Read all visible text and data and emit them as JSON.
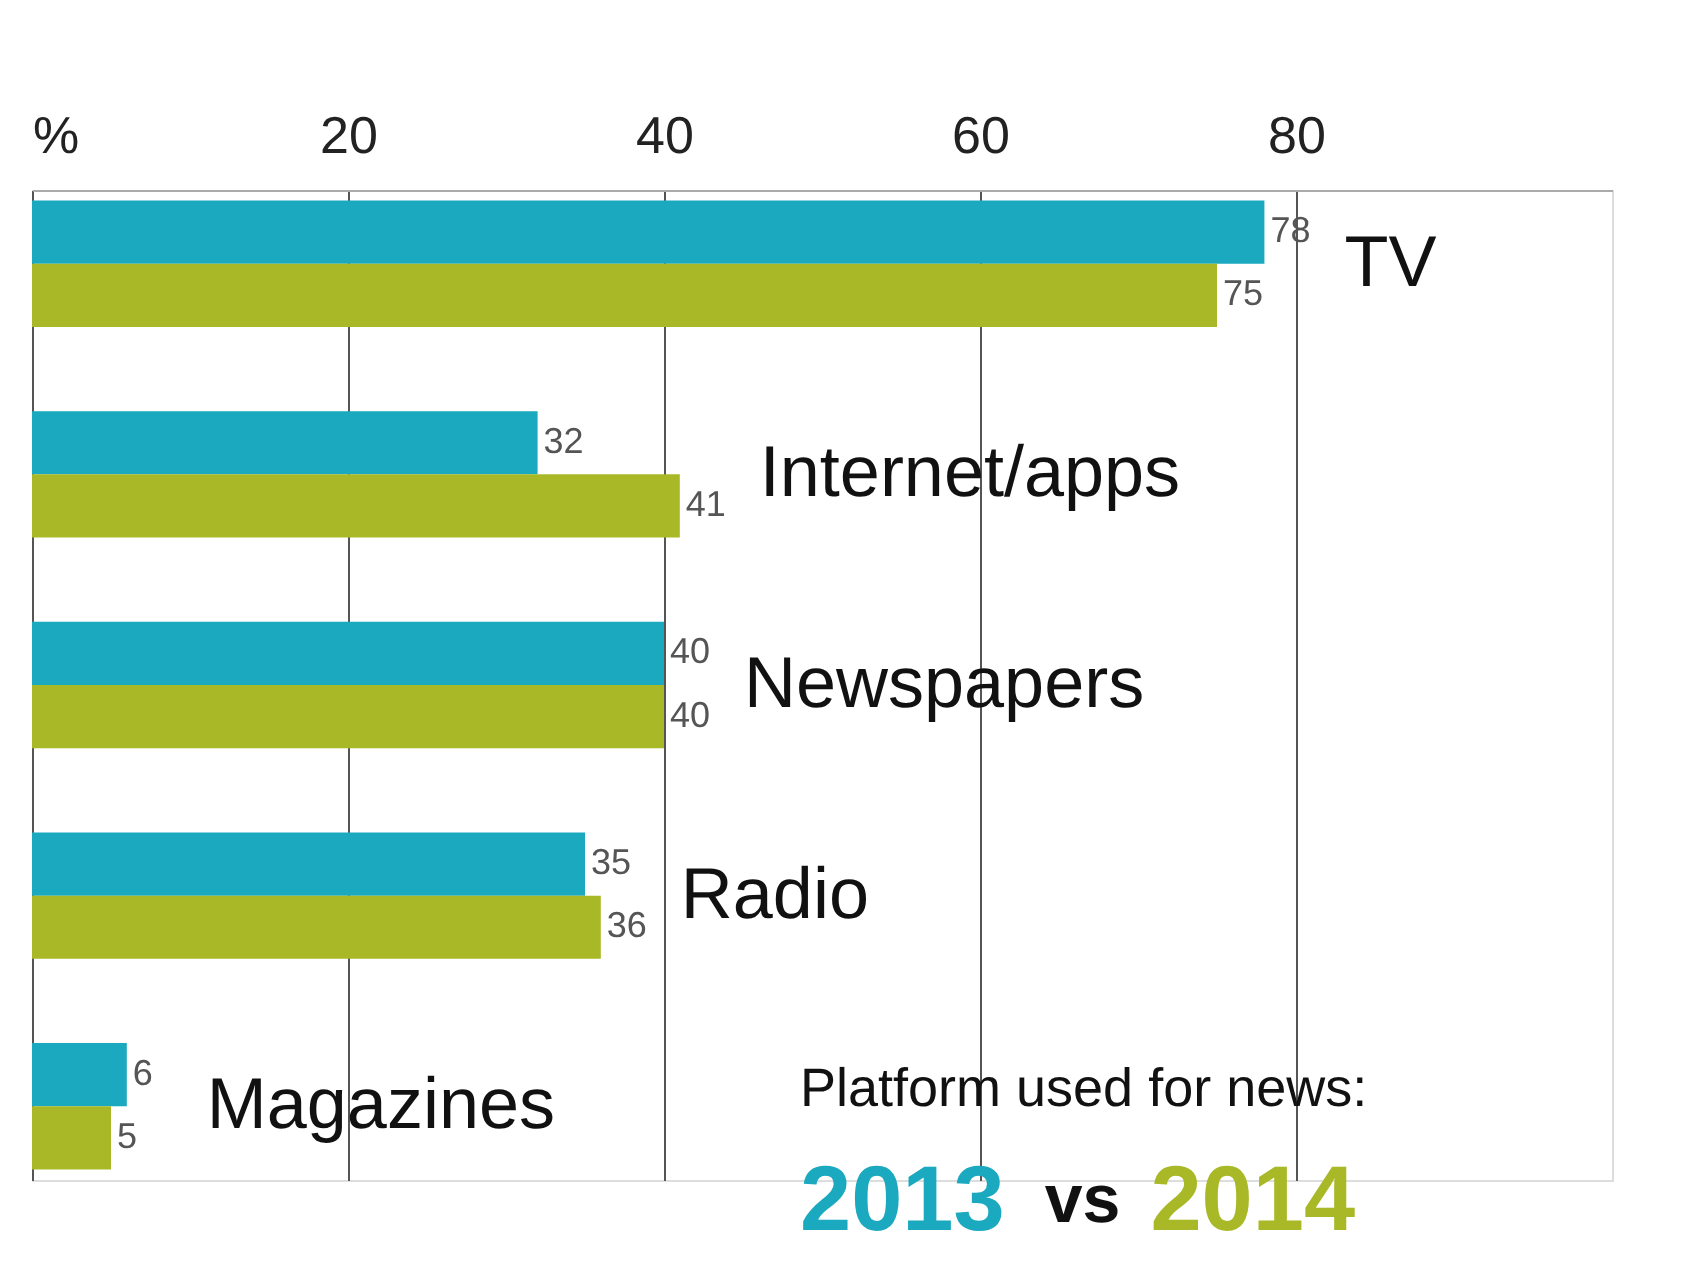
{
  "chart_data": {
    "type": "bar",
    "orientation": "horizontal",
    "title": "Platform used for news:",
    "annotations": [
      "vs"
    ],
    "categories": [
      "TV",
      "Internet/apps",
      "Newspapers",
      "Radio",
      "Magazines"
    ],
    "series": [
      {
        "name": "2013",
        "color": "#1aa9bf",
        "values": [
          78,
          32,
          40,
          35,
          6
        ]
      },
      {
        "name": "2014",
        "color": "#a9b826",
        "values": [
          75,
          41,
          40,
          36,
          5
        ]
      }
    ],
    "xlim": [
      0,
      100
    ],
    "xticks": [
      {
        "value": 0,
        "label": "%"
      },
      20,
      40,
      60,
      80
    ],
    "grid": "x",
    "data_labels": true
  }
}
